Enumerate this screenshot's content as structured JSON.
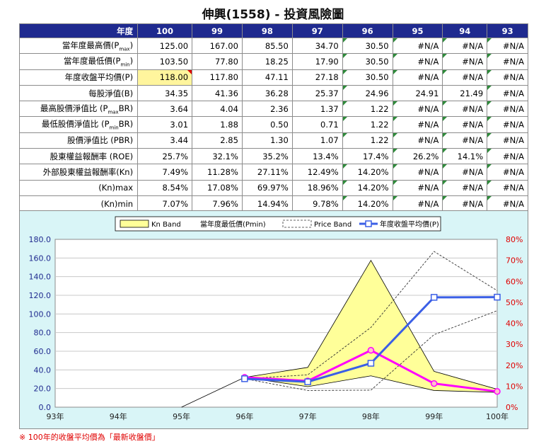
{
  "title": "伸興(1558) -  投資風險圖",
  "table": {
    "corner": "年度",
    "years": [
      "100",
      "99",
      "98",
      "97",
      "96",
      "95",
      "94",
      "93"
    ],
    "rows": [
      {
        "label_main": "當年度最高價(P",
        "label_sub": "max",
        "label_tail": ")",
        "cells": [
          "125.00",
          "167.00",
          "85.50",
          "34.70",
          "30.50",
          "#N/A",
          "#N/A",
          "#N/A"
        ]
      },
      {
        "label_main": "當年度最低價(P",
        "label_sub": "min",
        "label_tail": ")",
        "cells": [
          "103.50",
          "77.80",
          "18.25",
          "17.90",
          "30.50",
          "#N/A",
          "#N/A",
          "#N/A"
        ]
      },
      {
        "label_main": "年度收盤平均價(P)",
        "label_sub": "",
        "label_tail": "",
        "cells": [
          "118.00",
          "117.80",
          "47.11",
          "27.18",
          "30.50",
          "#N/A",
          "#N/A",
          "#N/A"
        ]
      },
      {
        "label_main": "每股淨值(B)",
        "label_sub": "",
        "label_tail": "",
        "cells": [
          "34.35",
          "41.36",
          "36.28",
          "25.37",
          "24.96",
          "24.91",
          "21.49",
          "#N/A"
        ]
      },
      {
        "label_main": "最高股價淨值比 (P",
        "label_sub": "max",
        "label_tail": "BR)",
        "cells": [
          "3.64",
          "4.04",
          "2.36",
          "1.37",
          "1.22",
          "#N/A",
          "#N/A",
          "#N/A"
        ]
      },
      {
        "label_main": "最低股價淨值比 (P",
        "label_sub": "min",
        "label_tail": "BR)",
        "cells": [
          "3.01",
          "1.88",
          "0.50",
          "0.71",
          "1.22",
          "#N/A",
          "#N/A",
          "#N/A"
        ]
      },
      {
        "label_main": "股價淨值比 (PBR)",
        "label_sub": "",
        "label_tail": "",
        "cells": [
          "3.44",
          "2.85",
          "1.30",
          "1.07",
          "1.22",
          "#N/A",
          "#N/A",
          "#N/A"
        ]
      },
      {
        "label_main": "股東權益報酬率 (ROE)",
        "label_sub": "",
        "label_tail": "",
        "cells": [
          "25.7%",
          "32.1%",
          "35.2%",
          "13.4%",
          "17.4%",
          "26.2%",
          "14.1%",
          "#N/A"
        ]
      },
      {
        "label_main": "外部股東權益報酬率(Kn)",
        "label_sub": "",
        "label_tail": "",
        "cells": [
          "7.49%",
          "11.28%",
          "27.11%",
          "12.49%",
          "14.20%",
          "#N/A",
          "#N/A",
          "#N/A"
        ]
      },
      {
        "label_main": "(Kn)max",
        "label_sub": "",
        "label_tail": "",
        "cells": [
          "8.54%",
          "17.08%",
          "69.97%",
          "18.96%",
          "14.20%",
          "#N/A",
          "#N/A",
          "#N/A"
        ]
      },
      {
        "label_main": "(Kn)min",
        "label_sub": "",
        "label_tail": "",
        "cells": [
          "7.07%",
          "7.96%",
          "14.94%",
          "9.78%",
          "14.20%",
          "#N/A",
          "#N/A",
          "#N/A"
        ]
      }
    ]
  },
  "chart_data": {
    "type": "line",
    "categories": [
      "93年",
      "94年",
      "95年",
      "96年",
      "97年",
      "98年",
      "99年",
      "100年"
    ],
    "legend": [
      "Kn Band",
      "當年度最低價(Pmin)",
      "Price Band",
      "年度收盤平均價(P)"
    ],
    "legend_position": "top-center",
    "y_left": {
      "min": 0,
      "max": 180,
      "step": 20,
      "tick_labels": [
        "0.0",
        "20.0",
        "40.0",
        "60.0",
        "80.0",
        "100.0",
        "120.0",
        "140.0",
        "160.0",
        "180.0"
      ]
    },
    "y_right": {
      "min": 0,
      "max": 0.8,
      "step": 0.1,
      "tick_labels": [
        "0%",
        "10%",
        "20%",
        "30%",
        "40%",
        "50%",
        "60%",
        "70%",
        "80%"
      ]
    },
    "series": [
      {
        "name": "Kn Band",
        "axis": "right",
        "kind": "band",
        "upper": [
          null,
          null,
          0,
          0.142,
          0.1896,
          0.6997,
          0.1708,
          0.0854
        ],
        "lower": [
          null,
          null,
          0,
          0.142,
          0.0978,
          0.1494,
          0.0796,
          0.0707
        ]
      },
      {
        "name": "Price Band",
        "axis": "left",
        "kind": "band-lines",
        "upper": [
          null,
          null,
          null,
          30.5,
          34.7,
          85.5,
          167.0,
          125.0
        ],
        "lower": [
          null,
          null,
          null,
          30.5,
          17.9,
          18.25,
          77.8,
          103.5
        ]
      },
      {
        "name": "年度收盤平均價(P)",
        "axis": "left",
        "kind": "line",
        "color": "#3b5fe6",
        "values": [
          null,
          null,
          null,
          30.5,
          27.18,
          47.11,
          117.8,
          118.0
        ]
      },
      {
        "axis": "right",
        "kind": "line",
        "color": "#ff00ff",
        "values": [
          null,
          null,
          null,
          0.142,
          0.1249,
          0.2711,
          0.1128,
          0.0749
        ]
      }
    ],
    "colors": {
      "band_fill": "#ffff99",
      "avg_line": "#3b5fe6",
      "kn_line": "#ff00ff",
      "right_axis": "#e00000",
      "left_axis": "#1f2a8f"
    }
  },
  "footnote": "※ 100年的收盤平均價為「最新收盤價」"
}
